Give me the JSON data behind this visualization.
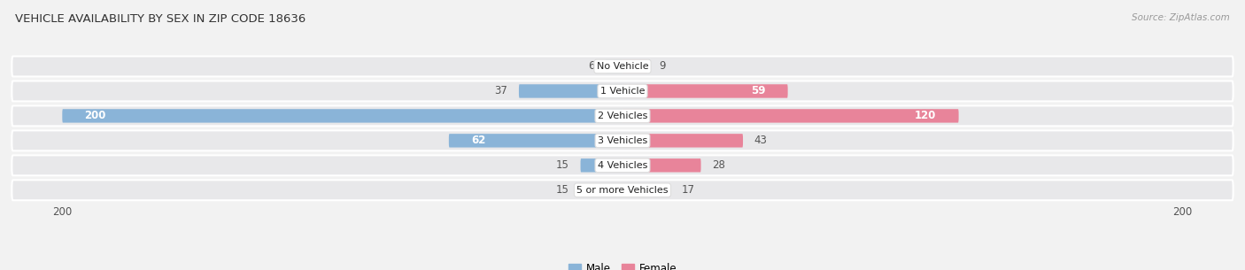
{
  "title": "VEHICLE AVAILABILITY BY SEX IN ZIP CODE 18636",
  "source": "Source: ZipAtlas.com",
  "categories": [
    "No Vehicle",
    "1 Vehicle",
    "2 Vehicles",
    "3 Vehicles",
    "4 Vehicles",
    "5 or more Vehicles"
  ],
  "male_values": [
    6,
    37,
    200,
    62,
    15,
    15
  ],
  "female_values": [
    9,
    59,
    120,
    43,
    28,
    17
  ],
  "male_color": "#8ab4d8",
  "female_color": "#e8849a",
  "male_color_light": "#aecde8",
  "female_color_light": "#f0a8b8",
  "axis_max": 200,
  "background_color": "#f2f2f2",
  "row_bg_color": "#e8e8ea",
  "label_color_inside": "#ffffff",
  "label_color_outside": "#555555",
  "threshold_inside": 50
}
